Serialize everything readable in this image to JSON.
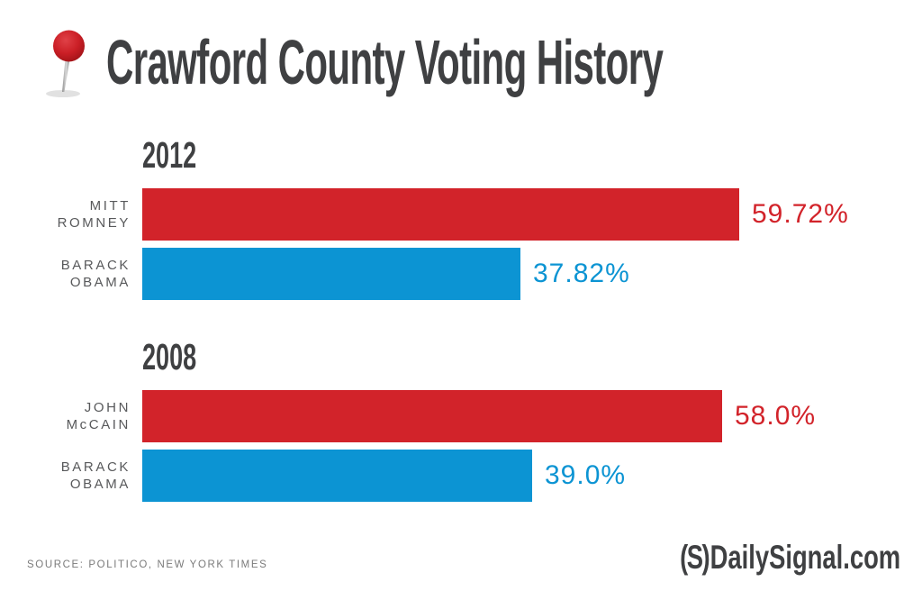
{
  "title": "Crawford County Voting History",
  "source_line": "SOURCE: POLITICO, NEW YORK TIMES",
  "logo": {
    "prefix": "(S)",
    "text": "DailySignal.com"
  },
  "colors": {
    "republican": "#D2232A",
    "democrat": "#0C94D3",
    "heading": "#3F4042",
    "candidate_label": "#58595B",
    "source_text": "#7B7B7B"
  },
  "icons": {
    "header_icon": "red-pushpin-icon"
  },
  "chart_data": {
    "type": "bar",
    "orientation": "horizontal",
    "unit": "%",
    "xlim": [
      0,
      60
    ],
    "grid": false,
    "legend": "none",
    "title": "Crawford County Voting History",
    "groups": [
      {
        "year": "2012",
        "bars": [
          {
            "candidate_lines": [
              "MITT",
              "ROMNEY"
            ],
            "party": "republican",
            "value": 59.72,
            "label": "59.72%"
          },
          {
            "candidate_lines": [
              "BARACK",
              "OBAMA"
            ],
            "party": "democrat",
            "value": 37.82,
            "label": "37.82%"
          }
        ]
      },
      {
        "year": "2008",
        "bars": [
          {
            "candidate_lines": [
              "JOHN",
              "McCAIN"
            ],
            "party": "republican",
            "value": 58.0,
            "label": "58.0%"
          },
          {
            "candidate_lines": [
              "BARACK",
              "OBAMA"
            ],
            "party": "democrat",
            "value": 39.0,
            "label": "39.0%"
          }
        ]
      }
    ]
  }
}
